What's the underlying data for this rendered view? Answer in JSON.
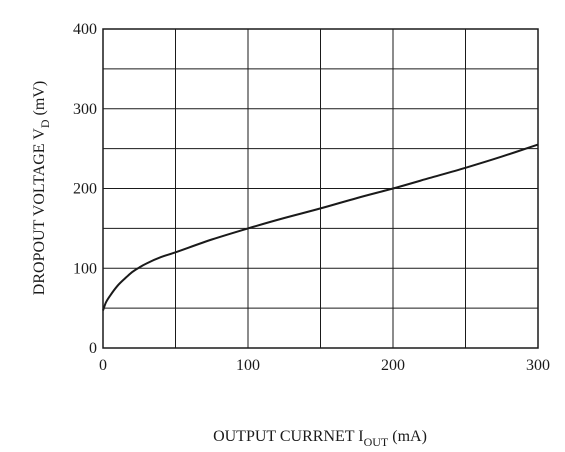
{
  "chart_data": {
    "type": "line",
    "xlabel": {
      "main": "OUTPUT CURRNET  I",
      "sub": "OUT",
      "unit": " (mA)"
    },
    "ylabel": {
      "main": "DROPOUT  VOLTAGE  V",
      "sub": "D",
      "unit": "  (mV)"
    },
    "xlim": [
      0,
      300
    ],
    "ylim": [
      0,
      400
    ],
    "x_ticks": [
      0,
      100,
      200,
      300
    ],
    "x_tick_labels": [
      "0",
      "100",
      "200",
      "300"
    ],
    "y_ticks": [
      0,
      100,
      200,
      300,
      400
    ],
    "y_tick_labels": [
      "0",
      "100",
      "200",
      "300",
      "400"
    ],
    "x_grid_step": 50,
    "y_grid_step": 50,
    "grid": true,
    "series": [
      {
        "x": [
          0,
          2,
          5,
          10,
          15,
          20,
          25,
          30,
          40,
          50,
          75,
          100,
          125,
          150,
          175,
          200,
          225,
          250,
          275,
          300
        ],
        "y": [
          47,
          57,
          66,
          78,
          87,
          95,
          101,
          106,
          114,
          120,
          136,
          150,
          163,
          175,
          188,
          200,
          213,
          226,
          240,
          255
        ]
      }
    ]
  }
}
